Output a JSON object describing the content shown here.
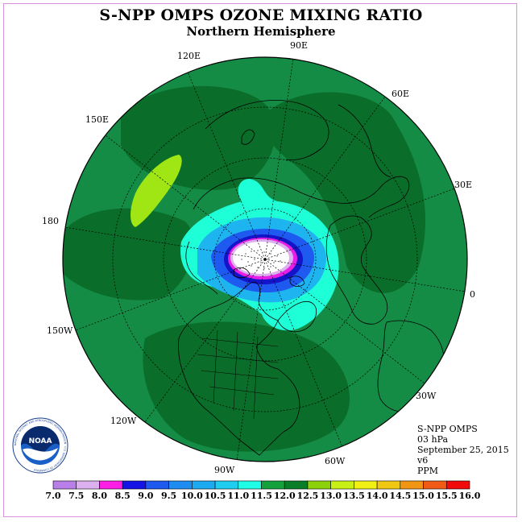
{
  "title": "S-NPP OMPS OZONE MIXING RATIO",
  "subtitle": "Northern Hemisphere",
  "map_labels": {
    "lon_90e": "90E",
    "lon_120e": "120E",
    "lon_60e": "60E",
    "lon_150e": "150E",
    "lon_30e": "30E",
    "lon_180": "180",
    "lon_0": "0",
    "lon_150w": "150W",
    "lon_30w": "30W",
    "lon_120w": "120W",
    "lon_60w": "60W",
    "lon_90w": "90W"
  },
  "info": {
    "instrument": "S-NPP OMPS",
    "level": "03 hPa",
    "date": "September 25, 2015",
    "version": "v6",
    "units": "PPM"
  },
  "logo": {
    "text": "NOAA",
    "ring_text": "NATIONAL OCEANIC AND ATMOSPHERIC ADMINISTRATION · U.S. DEPARTMENT OF COMMERCE"
  },
  "colorbar": {
    "labels": [
      "7.0",
      "7.5",
      "8.0",
      "8.5",
      "9.0",
      "9.5",
      "10.0",
      "10.5",
      "11.0",
      "11.5",
      "12.0",
      "12.5",
      "13.0",
      "13.5",
      "14.0",
      "14.5",
      "15.0",
      "15.5",
      "16.0"
    ],
    "colors": [
      "#b97fe8",
      "#dcb0ee",
      "#ff1ee6",
      "#1414e6",
      "#1e5af0",
      "#1e8cf0",
      "#1eaaf0",
      "#1ecdf0",
      "#1effe6",
      "#14a03c",
      "#0a7d28",
      "#8cd20a",
      "#c8f014",
      "#f0f014",
      "#f0c814",
      "#f09614",
      "#f05a14",
      "#f00a0a",
      "#8c5a3c"
    ]
  },
  "field_colors": {
    "background_green": "#148c46",
    "dark_green": "#0a6e2a",
    "lime": "#a0e614",
    "cyan": "#1effd8",
    "sky": "#1eb4f0",
    "blue": "#1e5af0",
    "navy": "#1414c8",
    "magenta": "#e61ee6",
    "lavender": "#dcb0ee"
  }
}
